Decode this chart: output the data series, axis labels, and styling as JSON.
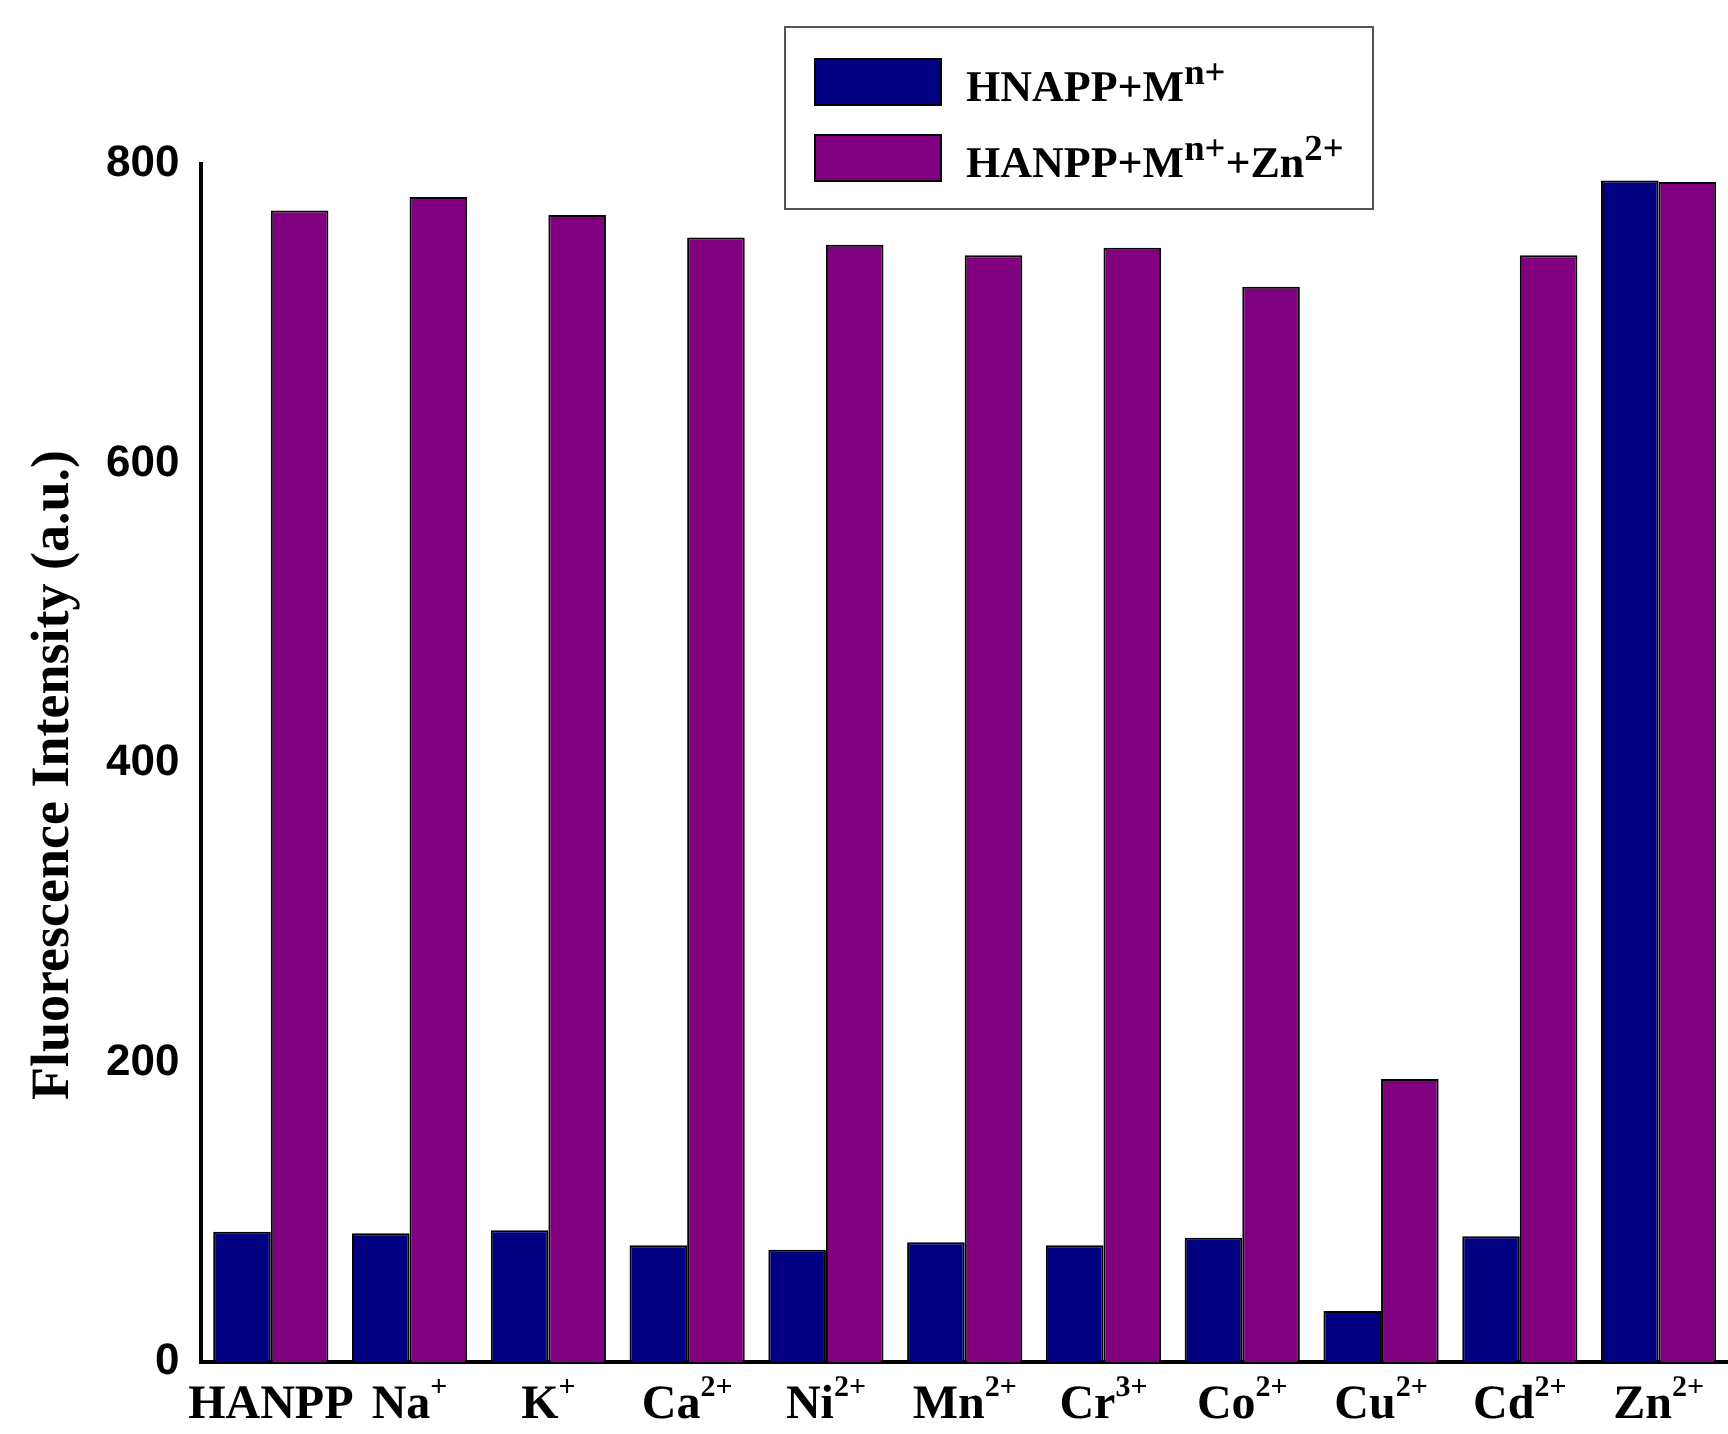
{
  "chart_data": {
    "type": "bar",
    "ylabel": "Fluorescence Intensity (a.u.)",
    "categories": [
      "HANPP",
      "Na$^{+}$",
      "K$^{+}$",
      "Ca$^{2+}$",
      "Ni$^{2+}$",
      "Mn$^{2+}$",
      "Cr$^{3+}$",
      "Co$^{2+}$",
      "Cu$^{2+}$",
      "Cd$^{2+}$",
      "Zn$^{2+}$"
    ],
    "series": [
      {
        "name": "HNAPP+M$^{n+}$",
        "color": "#000080",
        "values": [
          87,
          86,
          88,
          78,
          75,
          80,
          78,
          83,
          34,
          84,
          789
        ]
      },
      {
        "name": "HANPP+M$^{n+}$+Zn$^{2+}$",
        "color": "#800080",
        "values": [
          769,
          778,
          766,
          751,
          746,
          739,
          744,
          718,
          189,
          739,
          788
        ]
      }
    ],
    "ylim": [
      0,
      800
    ],
    "yticks": [
      0,
      200,
      400,
      600,
      800
    ],
    "grid": false,
    "legend": "top right"
  }
}
